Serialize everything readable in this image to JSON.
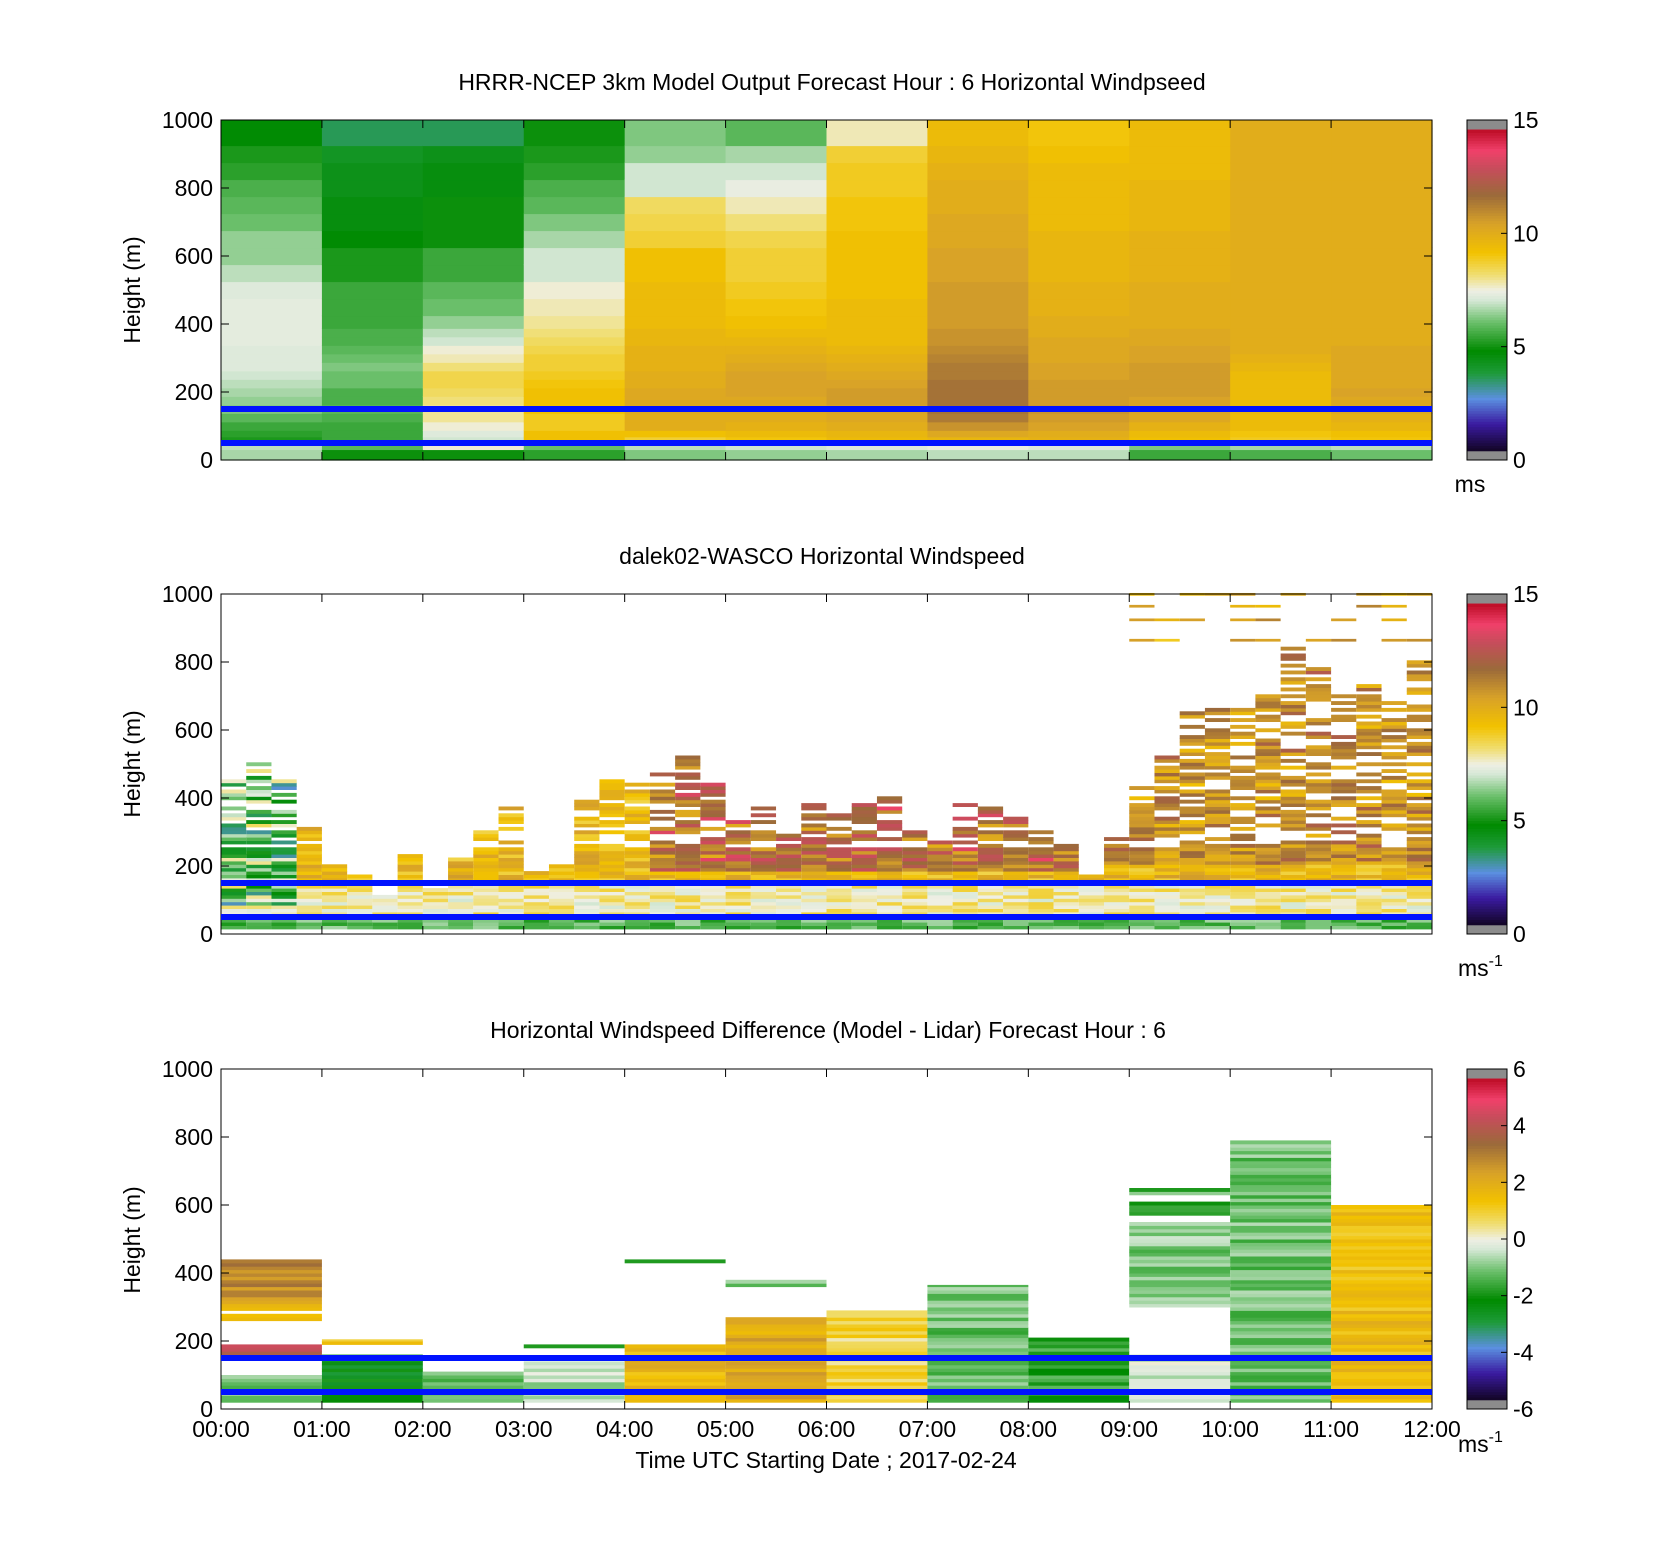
{
  "figure": {
    "xlabel": "Time UTC  Starting Date ; 2017-02-24"
  },
  "chart_data": [
    {
      "type": "heatmap",
      "title": "HRRR-NCEP 3km Model Output   Forecast Hour : 6 Horizontal Windpseed",
      "ylabel": "Height (m)",
      "ylim": [
        0,
        1000
      ],
      "yticks": [
        "0",
        "200",
        "400",
        "600",
        "800",
        "1000"
      ],
      "xlim_hours": [
        0,
        12
      ],
      "colorbar": {
        "min": 0,
        "max": 15,
        "ticks": [
          "0",
          "5",
          "10",
          "15"
        ],
        "unit": "ms",
        "unit_sup": "",
        "palette": "speed"
      },
      "reference_lines_m": [
        150,
        50
      ],
      "x_start_hours": [
        0,
        1,
        2,
        3,
        4,
        5,
        6,
        7,
        8,
        9,
        10,
        11
      ],
      "width_hours": 1,
      "heights_m": [
        25,
        37,
        50,
        62,
        75,
        100,
        125,
        150,
        175,
        200,
        225,
        250,
        275,
        300,
        325,
        350,
        375,
        400,
        450,
        500,
        550,
        600,
        650,
        700,
        750,
        800,
        850,
        900,
        950,
        1000
      ],
      "values": [
        [
          6.6,
          6.8,
          6.6,
          5.0,
          5.2,
          5.4,
          5.8,
          6.2,
          6.4,
          6.6,
          6.8,
          7.0,
          7.2,
          7.2,
          7.2,
          7.3,
          7.3,
          7.3,
          7.3,
          7.2,
          6.8,
          6.4,
          6.4,
          6.0,
          5.8,
          5.6,
          5.2,
          5.0,
          4.6,
          4.6
        ],
        [
          4.8,
          5.8,
          5.6,
          5.4,
          5.4,
          5.4,
          5.6,
          5.8,
          5.6,
          5.6,
          6.0,
          6.0,
          6.2,
          6.0,
          5.8,
          5.6,
          5.6,
          5.4,
          5.4,
          5.4,
          5.0,
          5.0,
          4.6,
          4.4,
          4.4,
          4.2,
          4.2,
          4.0,
          3.4,
          3.4
        ],
        [
          4.8,
          7.6,
          7.0,
          7.0,
          7.2,
          7.6,
          8.0,
          8.0,
          8.2,
          8.4,
          8.6,
          8.6,
          8.2,
          7.8,
          7.6,
          7.0,
          6.8,
          6.4,
          6.0,
          5.8,
          5.4,
          5.4,
          4.8,
          4.8,
          4.8,
          4.4,
          4.4,
          4.2,
          3.4,
          3.4
        ],
        [
          5.2,
          6.0,
          8.5,
          9.4,
          9.4,
          9.0,
          9.0,
          9.4,
          9.4,
          9.4,
          9.2,
          9.0,
          8.8,
          8.8,
          8.6,
          8.4,
          8.2,
          8.0,
          7.8,
          7.6,
          7.0,
          7.0,
          6.6,
          6.2,
          5.8,
          5.6,
          5.2,
          5.0,
          4.8,
          4.8
        ],
        [
          6.2,
          6.8,
          7.2,
          8.8,
          9.4,
          10.2,
          10.2,
          10.4,
          10.4,
          10.4,
          10.2,
          10.2,
          10.0,
          10.0,
          10.0,
          9.8,
          9.8,
          9.6,
          9.6,
          9.6,
          9.4,
          9.4,
          8.8,
          8.6,
          8.4,
          7.0,
          7.0,
          6.4,
          6.2,
          6.2
        ],
        [
          6.4,
          7.0,
          7.4,
          9.2,
          9.6,
          10.0,
          10.2,
          10.4,
          10.4,
          10.6,
          10.6,
          10.6,
          10.4,
          10.2,
          10.0,
          9.8,
          9.6,
          9.4,
          9.2,
          9.0,
          8.8,
          8.8,
          8.6,
          8.2,
          7.8,
          7.4,
          7.0,
          6.6,
          5.8,
          5.8
        ],
        [
          6.6,
          7.2,
          7.6,
          9.6,
          9.8,
          10.2,
          10.4,
          10.6,
          10.8,
          10.8,
          10.6,
          10.4,
          10.2,
          10.0,
          9.8,
          9.6,
          9.6,
          9.6,
          9.6,
          9.4,
          9.4,
          9.4,
          9.4,
          9.2,
          9.2,
          9.0,
          9.0,
          8.8,
          7.8,
          7.8
        ],
        [
          6.8,
          7.4,
          7.8,
          9.8,
          10.4,
          11.0,
          11.6,
          11.8,
          11.8,
          11.8,
          11.8,
          11.6,
          11.6,
          11.4,
          11.2,
          11.0,
          11.0,
          10.8,
          10.8,
          10.8,
          10.6,
          10.6,
          10.4,
          10.4,
          10.2,
          10.2,
          10.0,
          9.8,
          9.6,
          9.6
        ],
        [
          6.8,
          7.2,
          7.8,
          10.0,
          10.2,
          10.6,
          10.8,
          11.0,
          10.8,
          10.8,
          10.8,
          10.6,
          10.6,
          10.4,
          10.4,
          10.4,
          10.2,
          10.2,
          10.0,
          10.0,
          9.8,
          9.8,
          9.8,
          9.6,
          9.6,
          9.6,
          9.6,
          9.4,
          9.2,
          9.2
        ],
        [
          5.4,
          6.2,
          7.0,
          9.4,
          9.6,
          10.0,
          10.4,
          10.6,
          10.6,
          10.8,
          10.8,
          10.8,
          10.8,
          10.6,
          10.6,
          10.4,
          10.4,
          10.2,
          10.2,
          10.2,
          10.0,
          10.0,
          10.0,
          9.8,
          9.8,
          9.8,
          9.6,
          9.6,
          9.6,
          9.6
        ],
        [
          5.6,
          6.6,
          7.6,
          9.0,
          9.2,
          9.6,
          9.6,
          9.8,
          9.6,
          9.6,
          9.6,
          9.6,
          9.8,
          10.0,
          10.2,
          10.2,
          10.2,
          10.2,
          10.2,
          10.2,
          10.2,
          10.2,
          10.2,
          10.2,
          10.2,
          10.2,
          10.2,
          10.2,
          10.2,
          10.2
        ],
        [
          6.0,
          6.8,
          8.0,
          9.2,
          9.4,
          9.8,
          10.0,
          10.4,
          10.4,
          10.6,
          10.4,
          10.4,
          10.4,
          10.4,
          10.4,
          10.2,
          10.2,
          10.2,
          10.2,
          10.2,
          10.2,
          10.2,
          10.2,
          10.2,
          10.2,
          10.2,
          10.2,
          10.2,
          10.2,
          10.2
        ]
      ]
    },
    {
      "type": "heatmap",
      "title": "dalek02-WASCO  Horizontal Windspeed",
      "ylabel": "Height (m)",
      "ylim": [
        0,
        1000
      ],
      "yticks": [
        "0",
        "200",
        "400",
        "600",
        "800",
        "1000"
      ],
      "xlim_hours": [
        0,
        12
      ],
      "colorbar": {
        "min": 0,
        "max": 15,
        "ticks": [
          "0",
          "5",
          "10",
          "15"
        ],
        "unit": "ms",
        "unit_sup": "-1",
        "palette": "speed"
      },
      "reference_lines_m": [
        150,
        50
      ],
      "column_width_hours": 0.25,
      "profile_top_m": [
        450,
        500,
        450,
        330,
        200,
        170,
        110,
        230,
        130,
        220,
        300,
        370,
        180,
        200,
        400,
        450,
        440,
        480,
        520,
        440,
        330,
        400,
        300,
        380,
        350,
        380,
        400,
        300,
        300,
        380,
        370,
        340,
        300,
        260,
        170,
        290,
        430,
        520,
        650,
        660,
        660,
        700,
        840,
        800,
        700,
        730,
        680,
        800
      ]
    },
    {
      "type": "heatmap",
      "title": "Horizontal Windspeed Difference (Model - Lidar) Forecast Hour : 6",
      "ylabel": "Height (m)",
      "ylim": [
        0,
        1000
      ],
      "yticks": [
        "0",
        "200",
        "400",
        "600",
        "800",
        "1000"
      ],
      "xlim_hours": [
        0,
        12
      ],
      "xticks": [
        "00:00",
        "01:00",
        "02:00",
        "03:00",
        "04:00",
        "05:00",
        "06:00",
        "07:00",
        "08:00",
        "09:00",
        "10:00",
        "11:00",
        "12:00"
      ],
      "colorbar": {
        "min": -6,
        "max": 6,
        "ticks": [
          "-6",
          "-4",
          "-2",
          "0",
          "2",
          "4",
          "6"
        ],
        "unit": "ms",
        "unit_sup": "-1",
        "palette": "diff"
      },
      "reference_lines_m": [
        150,
        50
      ],
      "blocks": [
        {
          "x0": 0,
          "x1": 1,
          "segments": [
            [
              20,
              100,
              -1.0
            ],
            [
              160,
              190,
              4.5
            ],
            [
              260,
              280,
              1.5
            ],
            [
              290,
              330,
              2.0
            ],
            [
              330,
              440,
              3.0
            ]
          ]
        },
        {
          "x0": 1,
          "x1": 2,
          "segments": [
            [
              20,
              160,
              -2.5
            ],
            [
              190,
              205,
              1.2
            ]
          ]
        },
        {
          "x0": 2,
          "x1": 3,
          "segments": [
            [
              20,
              110,
              -1.4
            ]
          ]
        },
        {
          "x0": 3,
          "x1": 4,
          "segments": [
            [
              20,
              140,
              -0.6
            ],
            [
              180,
              190,
              -1.6
            ]
          ]
        },
        {
          "x0": 4,
          "x1": 5,
          "segments": [
            [
              20,
              190,
              1.8
            ]
          ]
        },
        {
          "x0": 4,
          "x1": 5,
          "segments": [
            [
              430,
              440,
              -2.4
            ]
          ]
        },
        {
          "x0": 5,
          "x1": 6,
          "segments": [
            [
              20,
              270,
              2.2
            ],
            [
              360,
              380,
              -1.0
            ]
          ]
        },
        {
          "x0": 6,
          "x1": 7,
          "segments": [
            [
              20,
              290,
              0.8
            ]
          ]
        },
        {
          "x0": 7,
          "x1": 8,
          "segments": [
            [
              20,
              365,
              -1.2
            ]
          ]
        },
        {
          "x0": 8,
          "x1": 9,
          "segments": [
            [
              20,
              210,
              -1.8
            ]
          ]
        },
        {
          "x0": 9,
          "x1": 10,
          "segments": [
            [
              20,
              160,
              -0.3
            ],
            [
              300,
              550,
              -1.0
            ],
            [
              570,
              610,
              -2.2
            ],
            [
              630,
              650,
              -1.4
            ]
          ]
        },
        {
          "x0": 10,
          "x1": 11,
          "segments": [
            [
              20,
              790,
              -1.2
            ]
          ]
        },
        {
          "x0": 11,
          "x1": 12,
          "segments": [
            [
              20,
              600,
              1.6
            ]
          ]
        }
      ]
    }
  ]
}
